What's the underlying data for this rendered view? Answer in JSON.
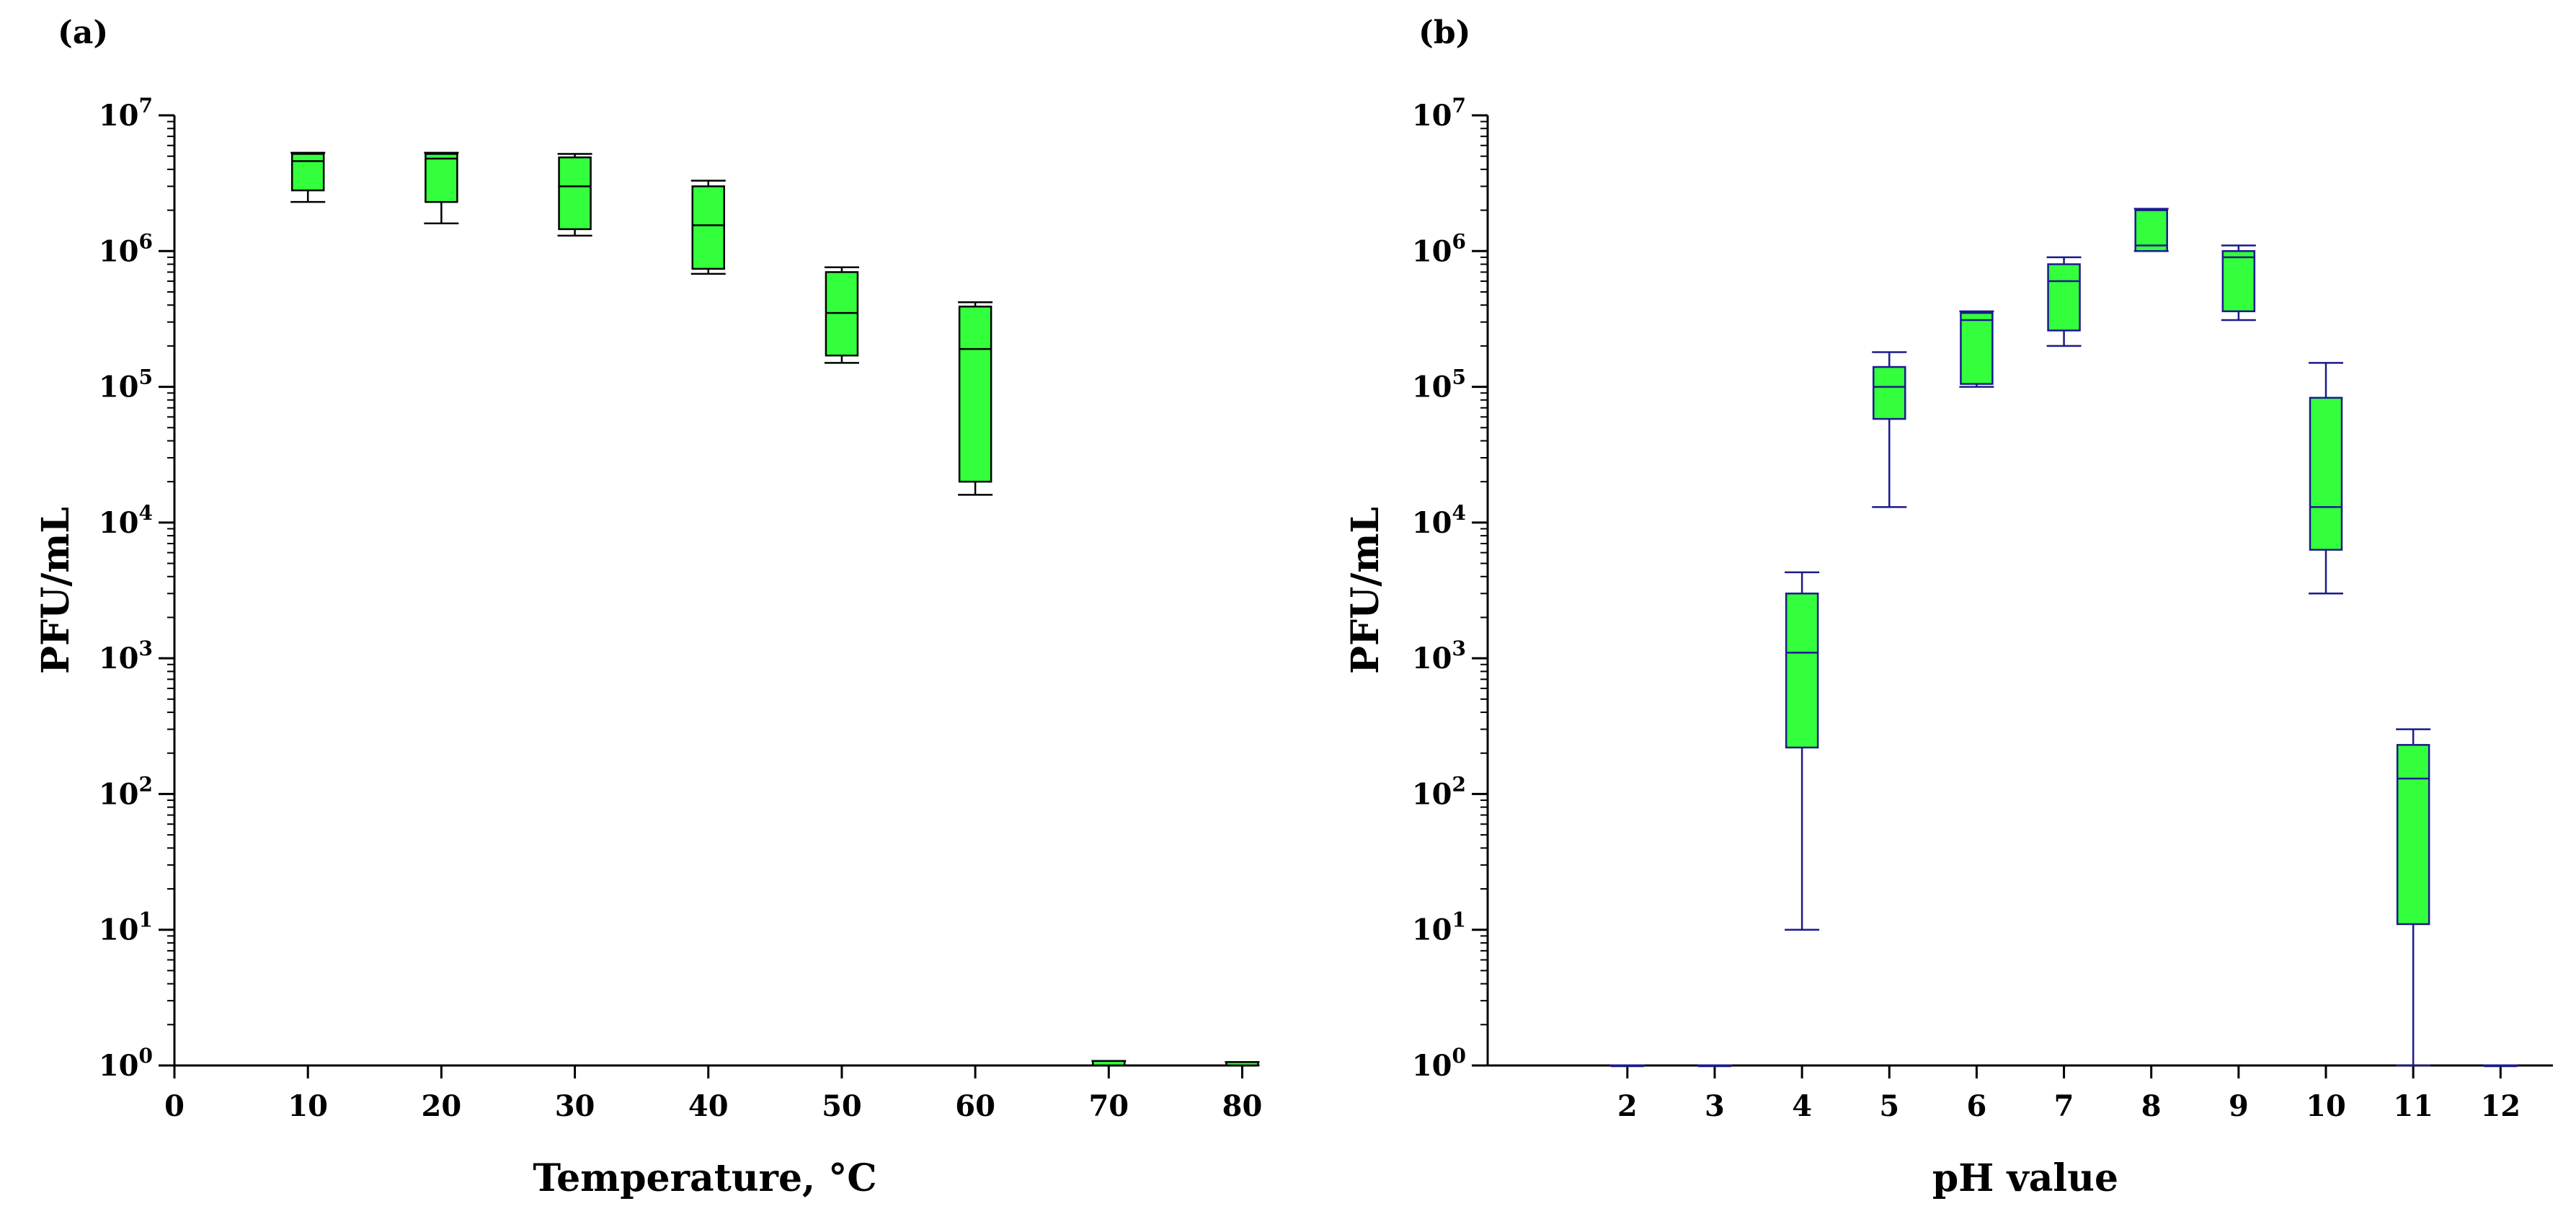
{
  "chart_data": [
    {
      "type": "box",
      "panel_label": "(a)",
      "xlabel": "Temperature, °C",
      "ylabel": "PFU/mL",
      "yscale": "log",
      "ylim": [
        1,
        10000000
      ],
      "xlim": [
        0,
        81
      ],
      "x_ticks": [
        "0",
        "10",
        "20",
        "30",
        "40",
        "50",
        "60",
        "70",
        "80"
      ],
      "y_ticks": [
        {
          "base": "10",
          "exp": "0"
        },
        {
          "base": "10",
          "exp": "1"
        },
        {
          "base": "10",
          "exp": "2"
        },
        {
          "base": "10",
          "exp": "3"
        },
        {
          "base": "10",
          "exp": "4"
        },
        {
          "base": "10",
          "exp": "5"
        },
        {
          "base": "10",
          "exp": "6"
        },
        {
          "base": "10",
          "exp": "7"
        }
      ],
      "whisker_color": "#000000",
      "box_fill": "#33ff3c",
      "boxes": [
        {
          "x": 10,
          "min": 2300000,
          "q1": 2800000,
          "median": 4600000,
          "q3": 5200000,
          "max": 5300000
        },
        {
          "x": 20,
          "min": 1600000,
          "q1": 2300000,
          "median": 4800000,
          "q3": 5200000,
          "max": 5300000
        },
        {
          "x": 30,
          "min": 1300000,
          "q1": 1450000,
          "median": 3000000,
          "q3": 4900000,
          "max": 5200000
        },
        {
          "x": 40,
          "min": 680000,
          "q1": 740000,
          "median": 1550000,
          "q3": 3000000,
          "max": 3300000
        },
        {
          "x": 50,
          "min": 150000,
          "q1": 170000,
          "median": 350000,
          "q3": 700000,
          "max": 760000
        },
        {
          "x": 60,
          "min": 16000,
          "q1": 20000,
          "median": 190000,
          "q3": 390000,
          "max": 420000
        },
        {
          "x": 70,
          "min": 1,
          "q1": 1,
          "median": 1,
          "q3": 1.08,
          "max": 1.08
        },
        {
          "x": 80,
          "min": 1,
          "q1": 1,
          "median": 1,
          "q3": 1.06,
          "max": 1.06
        }
      ]
    },
    {
      "type": "box",
      "panel_label": "(b)",
      "xlabel": "pH value",
      "ylabel": "PFU/mL",
      "yscale": "log",
      "ylim": [
        1,
        10000000
      ],
      "xlim": [
        0.4,
        12.6
      ],
      "x_ticks": [
        "2",
        "3",
        "4",
        "5",
        "6",
        "7",
        "8",
        "9",
        "10",
        "11",
        "12"
      ],
      "y_ticks": [
        {
          "base": "10",
          "exp": "0"
        },
        {
          "base": "10",
          "exp": "1"
        },
        {
          "base": "10",
          "exp": "2"
        },
        {
          "base": "10",
          "exp": "3"
        },
        {
          "base": "10",
          "exp": "4"
        },
        {
          "base": "10",
          "exp": "5"
        },
        {
          "base": "10",
          "exp": "6"
        },
        {
          "base": "10",
          "exp": "7"
        }
      ],
      "whisker_color": "#1a1a8c",
      "box_fill": "#33ff3c",
      "boxes": [
        {
          "x": 2,
          "min": 1,
          "q1": 1,
          "median": 1,
          "q3": 1,
          "max": 1
        },
        {
          "x": 3,
          "min": 1,
          "q1": 1,
          "median": 1,
          "q3": 1,
          "max": 1
        },
        {
          "x": 4,
          "min": 10,
          "q1": 220,
          "median": 1100,
          "q3": 3000,
          "max": 4300
        },
        {
          "x": 5,
          "min": 13000,
          "q1": 58000,
          "median": 100000,
          "q3": 140000,
          "max": 180000
        },
        {
          "x": 6,
          "min": 100000,
          "q1": 105000,
          "median": 310000,
          "q3": 350000,
          "max": 360000
        },
        {
          "x": 7,
          "min": 200000,
          "q1": 260000,
          "median": 600000,
          "q3": 800000,
          "max": 900000
        },
        {
          "x": 8,
          "min": 1000000,
          "q1": 1000000,
          "median": 1100000,
          "q3": 2000000,
          "max": 2050000
        },
        {
          "x": 9,
          "min": 310000,
          "q1": 360000,
          "median": 900000,
          "q3": 1000000,
          "max": 1100000
        },
        {
          "x": 10,
          "min": 3000,
          "q1": 6300,
          "median": 13000,
          "q3": 83000,
          "max": 150000
        },
        {
          "x": 11,
          "min": 1,
          "q1": 11,
          "median": 130,
          "q3": 230,
          "max": 300
        },
        {
          "x": 12,
          "min": 1,
          "q1": 1,
          "median": 1,
          "q3": 1,
          "max": 1
        }
      ]
    }
  ]
}
